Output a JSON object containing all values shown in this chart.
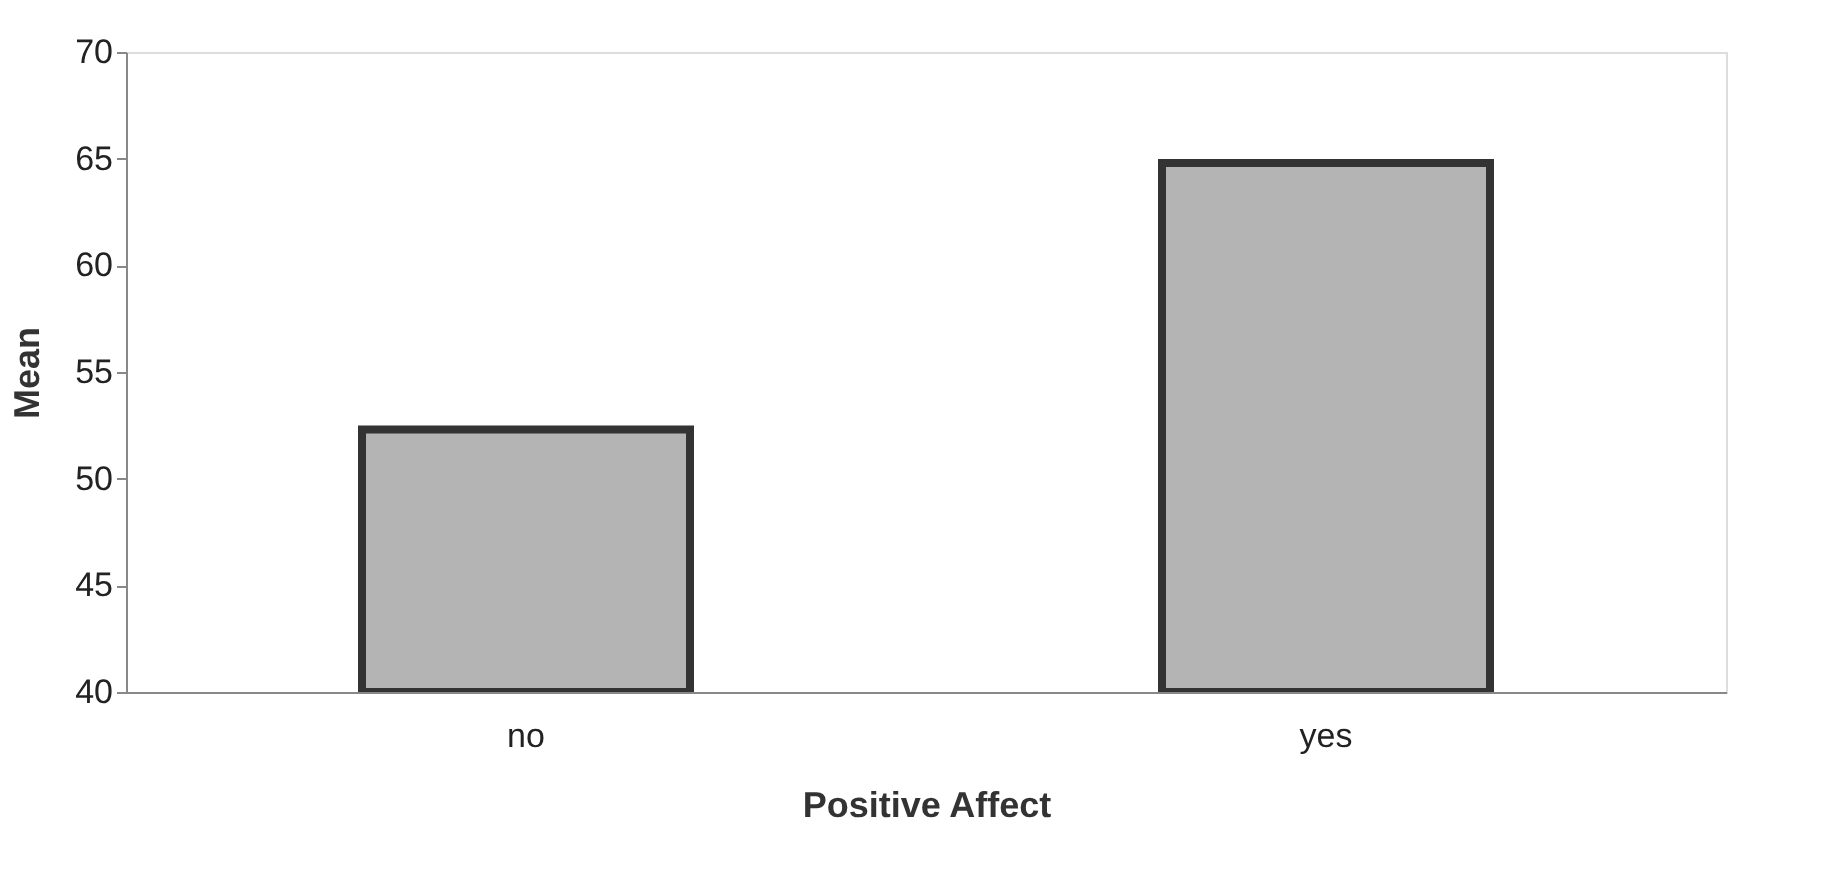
{
  "chart_data": {
    "type": "bar",
    "xlabel": "Positive Affect",
    "ylabel": "Mean",
    "categories": [
      "no",
      "yes"
    ],
    "series": [
      {
        "color": "#b4b4b4",
        "values": [
          52.3,
          64.8
        ]
      }
    ],
    "ylim": [
      40,
      70
    ],
    "yticks": [
      40,
      45,
      50,
      55,
      60,
      65,
      70
    ],
    "grid": false,
    "legend": false
  }
}
